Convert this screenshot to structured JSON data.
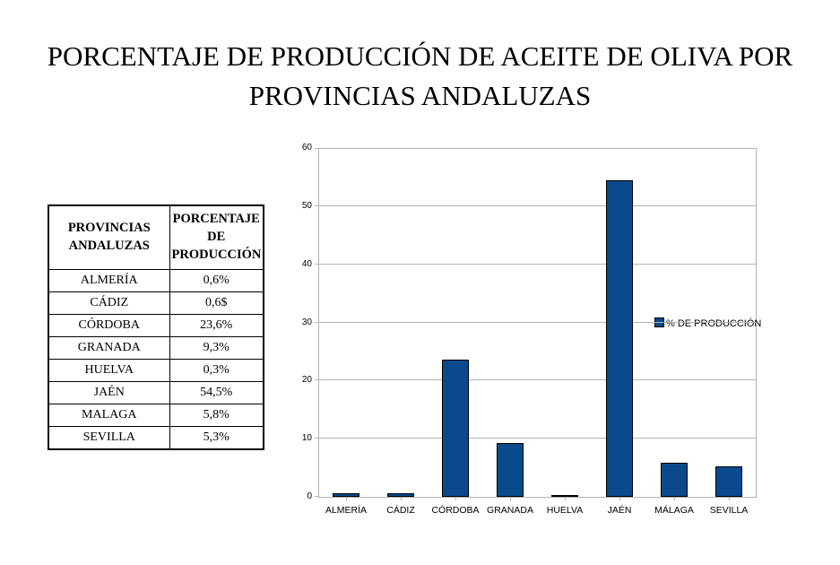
{
  "title": {
    "line1": "PORCENTAJE DE PRODUCCIÓN DE ACEITE DE OLIVA POR",
    "line2": "PROVINCIAS ANDALUZAS"
  },
  "table": {
    "header": {
      "col1_lines": [
        "PROVINCIAS",
        "ANDALUZAS"
      ],
      "col2_lines": [
        "PORCENTAJE",
        "DE",
        "PRODUCCIÓN"
      ]
    },
    "rows": [
      {
        "province": "ALMERÍA",
        "value": "0,6%"
      },
      {
        "province": "CÁDIZ",
        "value": "0,6$"
      },
      {
        "province": "CÓRDOBA",
        "value": "23,6%"
      },
      {
        "province": "GRANADA",
        "value": "9,3%"
      },
      {
        "province": "HUELVA",
        "value": "0,3%"
      },
      {
        "province": "JAÉN",
        "value": "54,5%"
      },
      {
        "province": "MALAGA",
        "value": "5,8%"
      },
      {
        "province": "SEVILLA",
        "value": "5,3%"
      }
    ]
  },
  "chart_data": {
    "type": "bar",
    "title": "",
    "categories": [
      "ALMERÍA",
      "CÁDIZ",
      "CÓRDOBA",
      "GRANADA",
      "HUELVA",
      "JAÉN",
      "MÁLAGA",
      "SEVILLA"
    ],
    "values": [
      0.6,
      0.6,
      23.6,
      9.3,
      0.3,
      54.5,
      5.8,
      5.3
    ],
    "legend": "% DE PRODUCCIÓN",
    "legend_position": "right-inside",
    "xlabel": "",
    "ylabel": "",
    "ylim": [
      0,
      60
    ],
    "yticks": [
      0,
      10,
      20,
      30,
      40,
      50,
      60
    ],
    "grid": true,
    "bar_color": "#0a4a8c",
    "bar_border_color": "#000000",
    "grid_color": "#b3b3b3",
    "axis_color": "#b3b3b3"
  }
}
